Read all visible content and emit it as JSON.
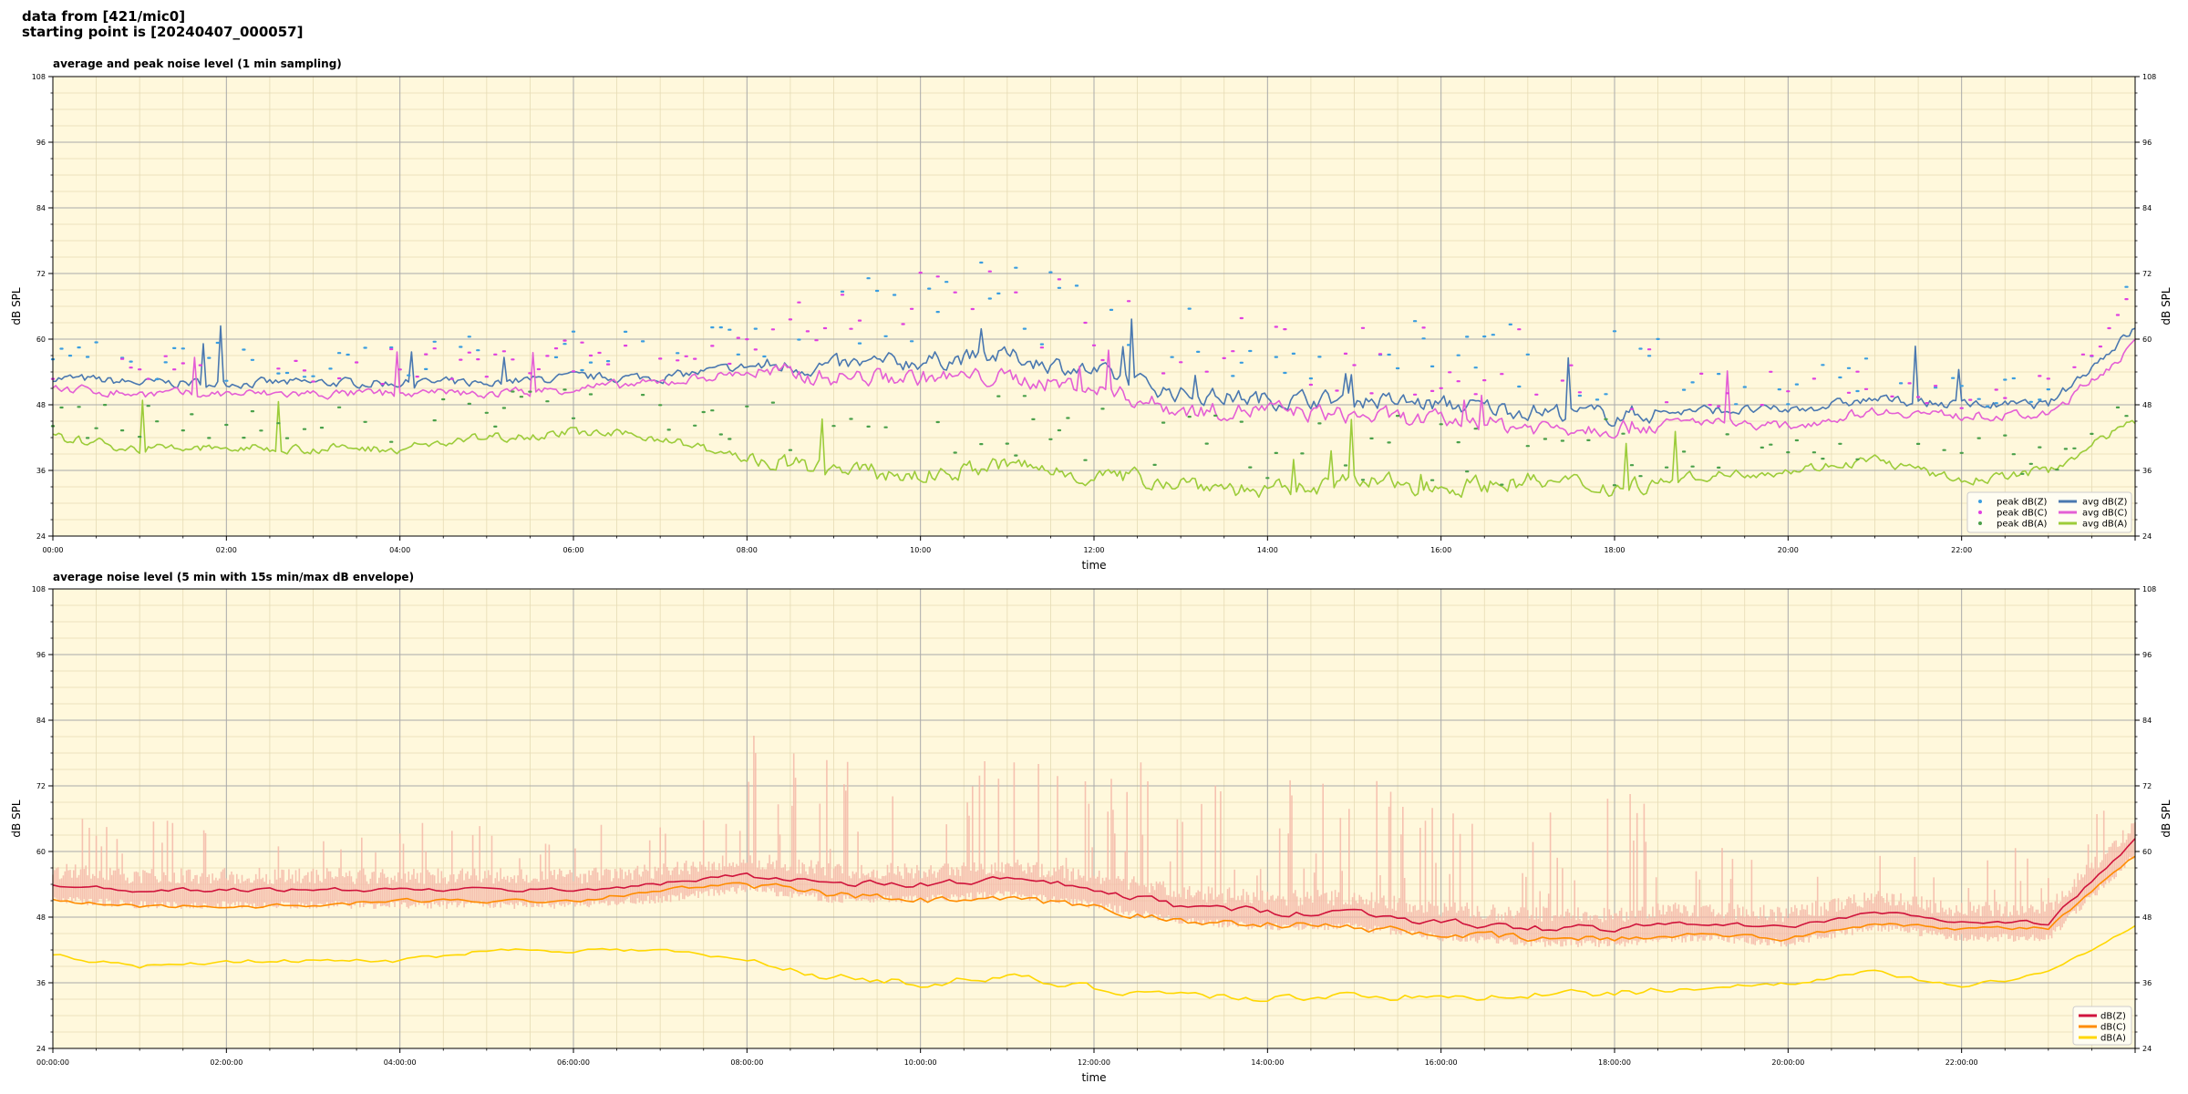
{
  "header": {
    "line1": "data from [421/mic0]",
    "line2": "starting point is [20240407_000057]"
  },
  "chart_data": [
    {
      "type": "line",
      "title": "average and peak noise level (1 min sampling)",
      "xlabel": "time",
      "ylabel": "dB SPL",
      "xlim": [
        0,
        24
      ],
      "ylim": [
        24,
        108
      ],
      "yticks": [
        24,
        36,
        48,
        60,
        72,
        84,
        96,
        108
      ],
      "xtick_labels": [
        "00:00",
        "02:00",
        "04:00",
        "06:00",
        "08:00",
        "10:00",
        "12:00",
        "14:00",
        "16:00",
        "18:00",
        "20:00",
        "22:00"
      ],
      "grid": true,
      "legend_position": "bottom-right",
      "x": [
        0,
        1,
        2,
        3,
        4,
        5,
        6,
        7,
        8,
        9,
        10,
        11,
        12,
        13,
        14,
        15,
        16,
        17,
        18,
        19,
        20,
        21,
        22,
        23,
        24
      ],
      "series": [
        {
          "name": "avg dB(Z)",
          "kind": "line",
          "color": "#4a78b0",
          "values": [
            53,
            52,
            52,
            52,
            52,
            52,
            53,
            53,
            55,
            55,
            56,
            57,
            54,
            50,
            49,
            49,
            48,
            47,
            46,
            47,
            47,
            49,
            48,
            48,
            62
          ]
        },
        {
          "name": "avg dB(C)",
          "kind": "line",
          "color": "#e45fd5",
          "values": [
            51,
            50,
            50,
            50,
            50,
            50,
            51,
            52,
            54,
            53,
            53,
            53,
            51,
            47,
            47,
            46,
            45,
            44,
            44,
            45,
            44,
            47,
            46,
            46,
            59
          ]
        },
        {
          "name": "avg dB(A)",
          "kind": "line",
          "color": "#9ccc3a",
          "values": [
            42,
            40,
            40,
            40,
            40,
            42,
            43,
            42,
            38,
            36,
            35,
            37,
            35,
            34,
            32,
            34,
            33,
            34,
            33,
            35,
            36,
            38,
            34,
            36,
            45
          ]
        },
        {
          "name": "peak dB(Z)",
          "kind": "scatter",
          "color": "#3a9de0",
          "values": [
            56,
            55,
            55,
            55,
            56,
            56,
            57,
            57,
            60,
            63,
            65,
            66,
            62,
            58,
            56,
            57,
            55,
            56,
            54,
            51,
            51,
            53,
            51,
            50,
            67
          ]
        },
        {
          "name": "peak dB(C)",
          "kind": "scatter",
          "color": "#e040e0",
          "values": [
            55,
            54,
            54,
            54,
            55,
            55,
            56,
            56,
            59,
            62,
            64,
            65,
            61,
            57,
            55,
            56,
            54,
            55,
            53,
            50,
            50,
            52,
            50,
            49,
            66
          ]
        },
        {
          "name": "peak dB(A)",
          "kind": "scatter",
          "color": "#4aa04a",
          "values": [
            45,
            44,
            44,
            44,
            44,
            46,
            47,
            46,
            44,
            42,
            41,
            42,
            41,
            39,
            38,
            38,
            38,
            38,
            37,
            38,
            39,
            41,
            38,
            38,
            48
          ]
        }
      ]
    },
    {
      "type": "line",
      "title": "average noise level (5 min with 15s min/max dB envelope)",
      "xlabel": "time",
      "ylabel": "dB SPL",
      "xlim": [
        0,
        24
      ],
      "ylim": [
        24,
        108
      ],
      "yticks": [
        24,
        36,
        48,
        60,
        72,
        84,
        96,
        108
      ],
      "xtick_labels": [
        "00:00:00",
        "02:00:00",
        "04:00:00",
        "06:00:00",
        "08:00:00",
        "10:00:00",
        "12:00:00",
        "14:00:00",
        "16:00:00",
        "18:00:00",
        "20:00:00",
        "22:00:00"
      ],
      "grid": true,
      "legend_position": "bottom-right",
      "envelope_color": "#f4b8a8",
      "x": [
        0,
        1,
        2,
        3,
        4,
        5,
        6,
        7,
        8,
        9,
        10,
        11,
        12,
        13,
        14,
        15,
        16,
        17,
        18,
        19,
        20,
        21,
        22,
        23,
        24
      ],
      "series": [
        {
          "name": "dB(Z)",
          "kind": "line",
          "color": "#d0143c",
          "values": [
            54,
            53,
            53,
            53,
            53,
            53,
            53,
            54,
            56,
            54,
            54,
            55,
            53,
            50,
            49,
            49,
            47,
            46,
            46,
            47,
            46,
            49,
            47,
            47,
            62
          ]
        },
        {
          "name": "dB(C)",
          "kind": "line",
          "color": "#ff8c00",
          "values": [
            51,
            50,
            50,
            50,
            51,
            51,
            51,
            53,
            54,
            52,
            51,
            51,
            50,
            47,
            47,
            46,
            45,
            44,
            44,
            45,
            44,
            47,
            46,
            46,
            59
          ]
        },
        {
          "name": "dB(A)",
          "kind": "line",
          "color": "#ffd700",
          "values": [
            41,
            39,
            40,
            40,
            40,
            42,
            42,
            42,
            40,
            37,
            36,
            37,
            35,
            34,
            33,
            34,
            33,
            34,
            34,
            35,
            36,
            38,
            35,
            38,
            46
          ]
        }
      ]
    }
  ]
}
